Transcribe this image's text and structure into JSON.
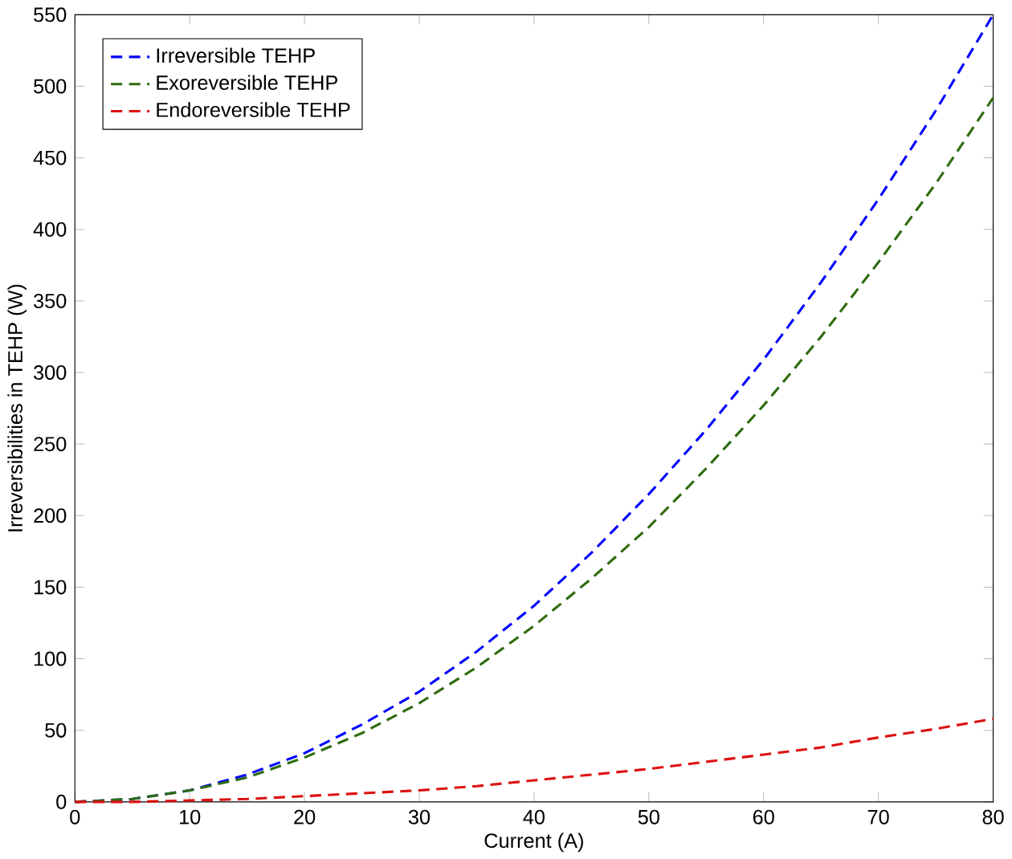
{
  "chart_data": {
    "type": "line",
    "xlabel": "Current (A)",
    "ylabel": "Irreversibilities in TEHP (W)",
    "x": [
      0,
      5,
      10,
      15,
      20,
      25,
      30,
      35,
      40,
      45,
      50,
      55,
      60,
      65,
      70,
      75,
      80
    ],
    "series": [
      {
        "name": "Irreversible TEHP",
        "color": "#0000ff",
        "values": [
          0,
          2,
          8,
          19,
          34,
          54,
          77,
          105,
          137,
          174,
          215,
          260,
          309,
          363,
          421,
          483,
          550
        ]
      },
      {
        "name": "Exoreversible TEHP",
        "color": "#2e6b0e",
        "values": [
          0,
          2,
          8,
          17,
          31,
          48,
          69,
          94,
          123,
          156,
          192,
          233,
          277,
          325,
          377,
          432,
          492
        ]
      },
      {
        "name": "Endoreversible TEHP",
        "color": "#dd1111",
        "values": [
          0,
          0,
          1,
          2,
          4,
          6,
          8,
          11,
          15,
          19,
          23,
          28,
          33,
          38,
          45,
          51,
          58
        ]
      }
    ],
    "xlim": [
      0,
      80
    ],
    "ylim": [
      0,
      550
    ],
    "xticks": [
      0,
      10,
      20,
      30,
      40,
      50,
      60,
      70,
      80
    ],
    "yticks": [
      0,
      50,
      100,
      150,
      200,
      250,
      300,
      350,
      400,
      450,
      500,
      550
    ],
    "legend": "top left",
    "line_style": "dashed",
    "marker": "none",
    "grid": false
  }
}
